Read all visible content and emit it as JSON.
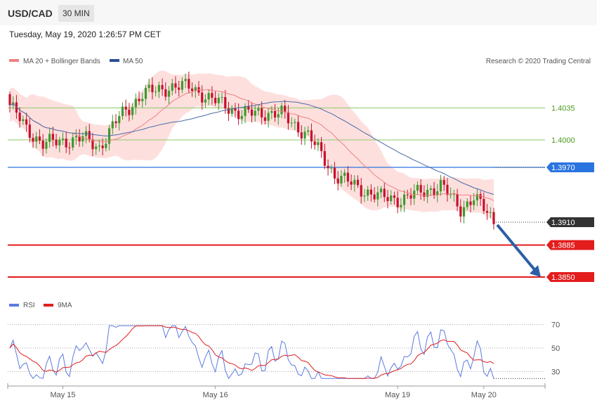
{
  "header": {
    "symbol": "USD/CAD",
    "timeframe": "30 MIN",
    "timestamp": "Tuesday, May 19, 2020 1:26:57 PM CET"
  },
  "legend": {
    "ma20": "MA 20 + Bollinger Bands",
    "ma50": "MA 50",
    "credit": "Research © 2020 Trading Central",
    "rsi": "RSI",
    "rsi_ma": "9MA"
  },
  "colors": {
    "bullish": "#3d9a2e",
    "bearish": "#c8102e",
    "band": "#fcd6d3",
    "ma20": "#f08080",
    "ma50": "#4a6aa8",
    "support": "#e31c1c",
    "resistance": "#2a74e0",
    "green_level": "#8ec86a",
    "last_price": "#333333",
    "arrow": "#2b5ea6",
    "rsi": "#5b7be0",
    "rsi_ma": "#e02020"
  },
  "chart_data": [
    {
      "type": "candlestick",
      "title": "USD/CAD",
      "timeframe": "30 MIN",
      "ylim": [
        1.383,
        1.408
      ],
      "date_labels": [
        "May 15",
        "May 16",
        "May 19",
        "May 20"
      ],
      "levels": [
        {
          "value": 1.4035,
          "label": "1.4035",
          "style": "green"
        },
        {
          "value": 1.4,
          "label": "1.4000",
          "style": "green"
        },
        {
          "value": 1.397,
          "label": "1.3970",
          "style": "resistance"
        },
        {
          "value": 1.391,
          "label": "1.3910",
          "style": "last"
        },
        {
          "value": 1.3885,
          "label": "1.3885",
          "style": "support"
        },
        {
          "value": 1.385,
          "label": "1.3850",
          "style": "support"
        }
      ],
      "arrow": {
        "from": 1.3907,
        "to": 1.385,
        "direction": "down"
      },
      "series": [
        {
          "name": "MA 20 + Bollinger Bands"
        },
        {
          "name": "MA 50"
        }
      ]
    },
    {
      "type": "line",
      "title": "RSI",
      "ylim": [
        20,
        80
      ],
      "ticks": [
        70,
        50,
        30
      ],
      "tick_labels": [
        "70",
        "50",
        "30"
      ],
      "series": [
        {
          "name": "RSI"
        },
        {
          "name": "9MA"
        }
      ]
    }
  ]
}
